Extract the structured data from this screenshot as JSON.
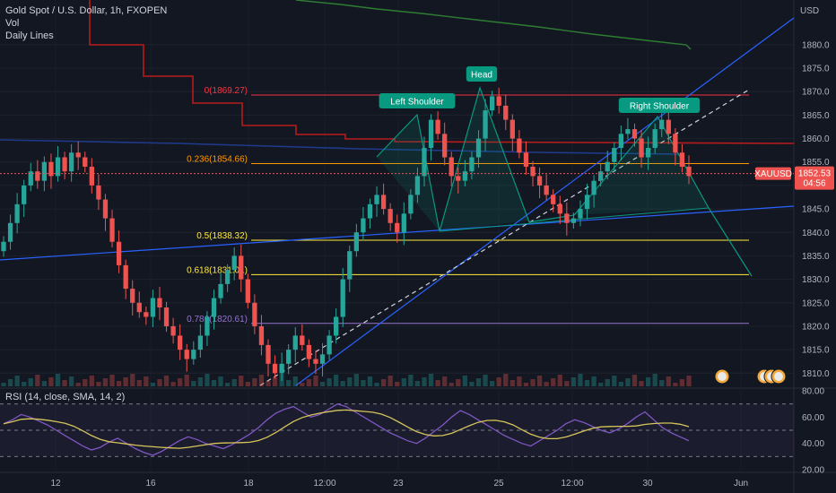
{
  "legend": {
    "symbol": "Gold Spot / U.S. Dollar, 1h, FXOPEN",
    "vol": "Vol",
    "daily": "Daily Lines"
  },
  "rsi_label": "RSI (14, close, SMA, 14, 2)",
  "currency": "USD",
  "price_tag": {
    "symbol": "XAUUSD",
    "price": "1852.53",
    "timer": "04:56"
  },
  "colors": {
    "bg": "#131722",
    "up": "#26a69a",
    "down": "#ef5350",
    "fib_red": "#f23645",
    "fib_orange": "#ff9800",
    "fib_yellow": "#ffeb3b",
    "fib_purple": "#9575cd",
    "trend_blue": "#2962ff",
    "rsi": "#7e57c2",
    "rsi_ma": "#d6c55b",
    "pattern": "#089981",
    "daily_red": "#b71c1c",
    "daily_green": "#2e7d32"
  },
  "chart_data": {
    "type": "candlestick",
    "price_axis": {
      "min": 1807,
      "max": 1888,
      "ticks": [
        1880,
        1875,
        1870,
        1865,
        1860,
        1855,
        1850,
        1845,
        1840,
        1835,
        1830,
        1825,
        1820,
        1815,
        1810
      ]
    },
    "time_axis": [
      "12",
      "16",
      "18",
      "12:00",
      "23",
      "25",
      "12:00",
      "30",
      "Jun"
    ],
    "fib_levels": [
      {
        "label": "0(1869.27)",
        "value": 1869.27,
        "color": "fib_red"
      },
      {
        "label": "0.236(1854.66)",
        "value": 1854.66,
        "color": "fib_orange"
      },
      {
        "label": "0.5(1838.32)",
        "value": 1838.32,
        "color": "fib_yellow"
      },
      {
        "label": "0.618(1831.01)",
        "value": 1831.01,
        "color": "fib_yellow"
      },
      {
        "label": "0.786(1820.61)",
        "value": 1820.61,
        "color": "fib_purple"
      }
    ],
    "pattern_labels": [
      "Left Shoulder",
      "Head",
      "Right Shoulder"
    ],
    "last_price": 1852.53,
    "closes": [
      1838,
      1842,
      1846,
      1850,
      1853,
      1851,
      1855,
      1852,
      1856,
      1853,
      1857,
      1856,
      1854,
      1850,
      1847,
      1843,
      1838,
      1833,
      1828,
      1825,
      1823,
      1822,
      1826,
      1824,
      1820,
      1818,
      1815,
      1813,
      1815,
      1818,
      1822,
      1826,
      1829,
      1832,
      1835,
      1830,
      1825,
      1820,
      1816,
      1812,
      1810,
      1812,
      1815,
      1818,
      1816,
      1813,
      1812,
      1814,
      1818,
      1822,
      1830,
      1836,
      1840,
      1843,
      1846,
      1848,
      1845,
      1842,
      1840,
      1844,
      1848,
      1852,
      1858,
      1864,
      1861,
      1856,
      1852,
      1851,
      1853,
      1856,
      1860,
      1866,
      1869,
      1867,
      1864,
      1860,
      1857,
      1854,
      1852,
      1850,
      1848,
      1846,
      1844,
      1842,
      1843,
      1845,
      1848,
      1851,
      1853,
      1855,
      1858,
      1861,
      1862,
      1860,
      1856,
      1858,
      1862,
      1864,
      1861,
      1857,
      1854,
      1852
    ],
    "rsi_axis": {
      "min": 20,
      "max": 80,
      "ticks": [
        80,
        60,
        40,
        20
      ]
    },
    "rsi": [
      55,
      58,
      62,
      60,
      57,
      54,
      50,
      46,
      42,
      38,
      35,
      37,
      41,
      44,
      40,
      36,
      33,
      31,
      34,
      38,
      42,
      45,
      43,
      40,
      38,
      36,
      39,
      43,
      47,
      52,
      58,
      63,
      66,
      68,
      64,
      60,
      62,
      66,
      70,
      68,
      64,
      60,
      56,
      52,
      48,
      45,
      42,
      40,
      44,
      49,
      54,
      60,
      65,
      62,
      58,
      54,
      50,
      46,
      43,
      40,
      38,
      42,
      46,
      50,
      55,
      58,
      56,
      53,
      50,
      48,
      51,
      55,
      60,
      64,
      58,
      52,
      48,
      45,
      42
    ]
  }
}
